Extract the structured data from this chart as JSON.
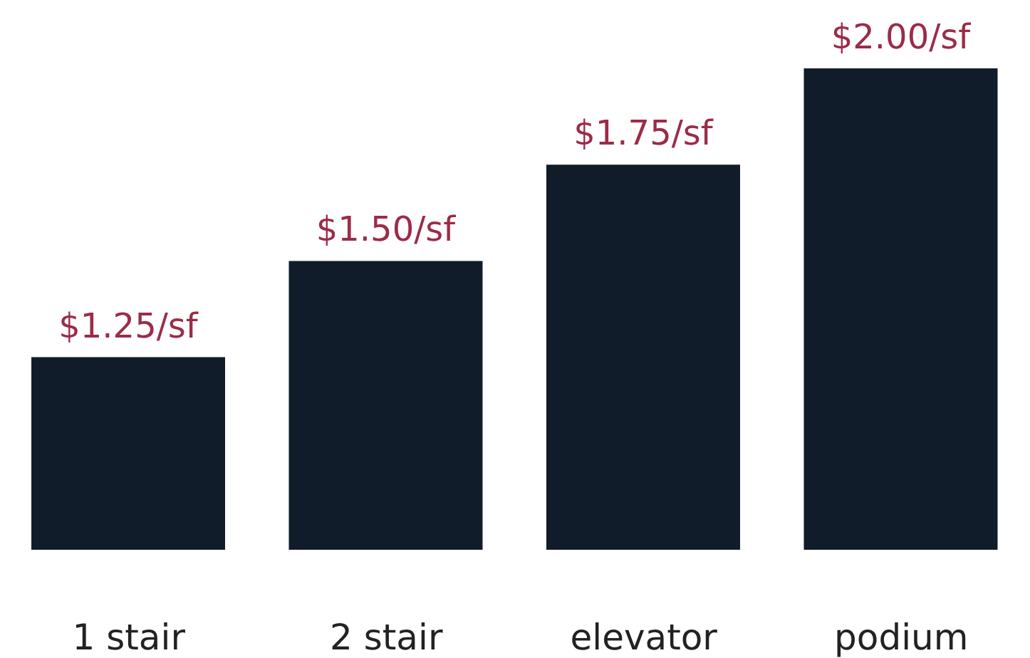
{
  "chart_data": {
    "type": "bar",
    "categories": [
      "1 stair",
      "2 stair",
      "elevator",
      "podium"
    ],
    "values": [
      1.25,
      1.5,
      1.75,
      2.0
    ],
    "value_labels": [
      "$1.25/sf",
      "$1.50/sf",
      "$1.75/sf",
      "$2.00/sf"
    ],
    "color": "#111c2a",
    "ylim": [
      0.75,
      2.0
    ],
    "tick_labels": "x",
    "grid": false,
    "legend": false
  }
}
